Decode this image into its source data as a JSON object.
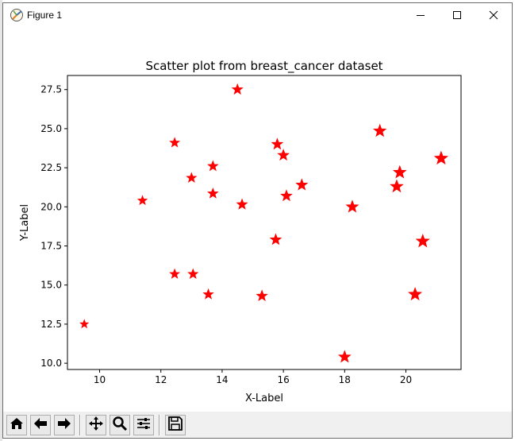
{
  "window": {
    "title": "Figure 1"
  },
  "titlebar_buttons": {
    "minimize_icon": "minimize-icon",
    "maximize_icon": "maximize-icon",
    "close_icon": "close-icon"
  },
  "toolbar": {
    "buttons": [
      {
        "name": "home-icon"
      },
      {
        "name": "back-arrow-icon"
      },
      {
        "name": "forward-arrow-icon"
      },
      {
        "name": "pan-icon"
      },
      {
        "name": "zoom-icon"
      },
      {
        "name": "configure-subplots-icon"
      },
      {
        "name": "save-icon"
      }
    ]
  },
  "chart_data": {
    "type": "scatter",
    "title": "Scatter plot from breast_cancer dataset",
    "xlabel": "X-Label",
    "ylabel": "Y-Label",
    "xlim": [
      8.95,
      21.8
    ],
    "ylim": [
      9.6,
      28.4
    ],
    "xticks": [
      10,
      12,
      14,
      16,
      18,
      20
    ],
    "yticks": [
      10.0,
      12.5,
      15.0,
      17.5,
      20.0,
      22.5,
      25.0,
      27.5
    ],
    "marker": "star",
    "color": "#ff0000",
    "grid": false,
    "points": [
      {
        "x": 9.5,
        "y": 12.5
      },
      {
        "x": 11.4,
        "y": 20.4
      },
      {
        "x": 12.45,
        "y": 24.1
      },
      {
        "x": 12.45,
        "y": 15.7
      },
      {
        "x": 13.0,
        "y": 21.85
      },
      {
        "x": 13.05,
        "y": 15.7
      },
      {
        "x": 13.55,
        "y": 14.4
      },
      {
        "x": 13.7,
        "y": 22.6
      },
      {
        "x": 13.7,
        "y": 20.85
      },
      {
        "x": 14.5,
        "y": 27.5
      },
      {
        "x": 14.65,
        "y": 20.15
      },
      {
        "x": 15.3,
        "y": 14.3
      },
      {
        "x": 15.8,
        "y": 24.0
      },
      {
        "x": 15.75,
        "y": 17.9
      },
      {
        "x": 16.0,
        "y": 23.3
      },
      {
        "x": 16.1,
        "y": 20.7
      },
      {
        "x": 16.6,
        "y": 21.4
      },
      {
        "x": 18.0,
        "y": 10.4
      },
      {
        "x": 18.25,
        "y": 20.0
      },
      {
        "x": 19.15,
        "y": 24.85
      },
      {
        "x": 19.7,
        "y": 21.3
      },
      {
        "x": 19.8,
        "y": 22.2
      },
      {
        "x": 20.3,
        "y": 14.4
      },
      {
        "x": 20.55,
        "y": 17.8
      },
      {
        "x": 21.15,
        "y": 23.1
      }
    ]
  }
}
